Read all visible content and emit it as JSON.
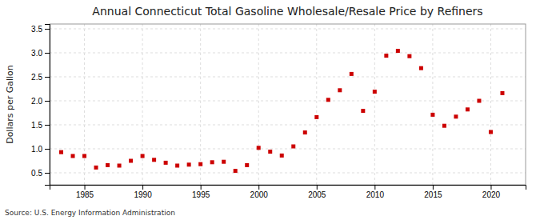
{
  "chart_data": {
    "type": "scatter",
    "title": "Annual Connecticut Total Gasoline Wholesale/Resale Price by Refiners",
    "ylabel": "Dollars per Gallon",
    "annotation": "Source: U.S. Energy Information Administration",
    "x": [
      1983,
      1984,
      1985,
      1986,
      1987,
      1988,
      1989,
      1990,
      1991,
      1992,
      1993,
      1994,
      1995,
      1996,
      1997,
      1998,
      1999,
      2000,
      2001,
      2002,
      2003,
      2004,
      2005,
      2006,
      2007,
      2008,
      2009,
      2010,
      2011,
      2012,
      2013,
      2014,
      2015,
      2016,
      2017,
      2018,
      2019,
      2020,
      2021
    ],
    "values": [
      0.93,
      0.85,
      0.85,
      0.61,
      0.66,
      0.65,
      0.75,
      0.85,
      0.77,
      0.71,
      0.65,
      0.67,
      0.68,
      0.72,
      0.73,
      0.54,
      0.66,
      1.02,
      0.94,
      0.86,
      1.05,
      1.34,
      1.66,
      2.02,
      2.22,
      2.56,
      1.79,
      2.19,
      2.94,
      3.04,
      2.93,
      2.68,
      1.71,
      1.48,
      1.67,
      1.82,
      2.0,
      1.35,
      2.16
    ],
    "color": "#cc0000",
    "marker": "square",
    "xlim": [
      1982,
      2023
    ],
    "ylim": [
      0.25,
      3.6
    ],
    "xticks": [
      1985,
      1990,
      1995,
      2000,
      2005,
      2010,
      2015,
      2020
    ],
    "yticks": [
      0.5,
      {
        "value": 1.0,
        "label": "1.0"
      },
      1.5,
      {
        "value": 2.0,
        "label": "2.0"
      },
      2.5,
      {
        "value": 3.0,
        "label": "3.0"
      },
      3.5
    ],
    "grid": true
  }
}
